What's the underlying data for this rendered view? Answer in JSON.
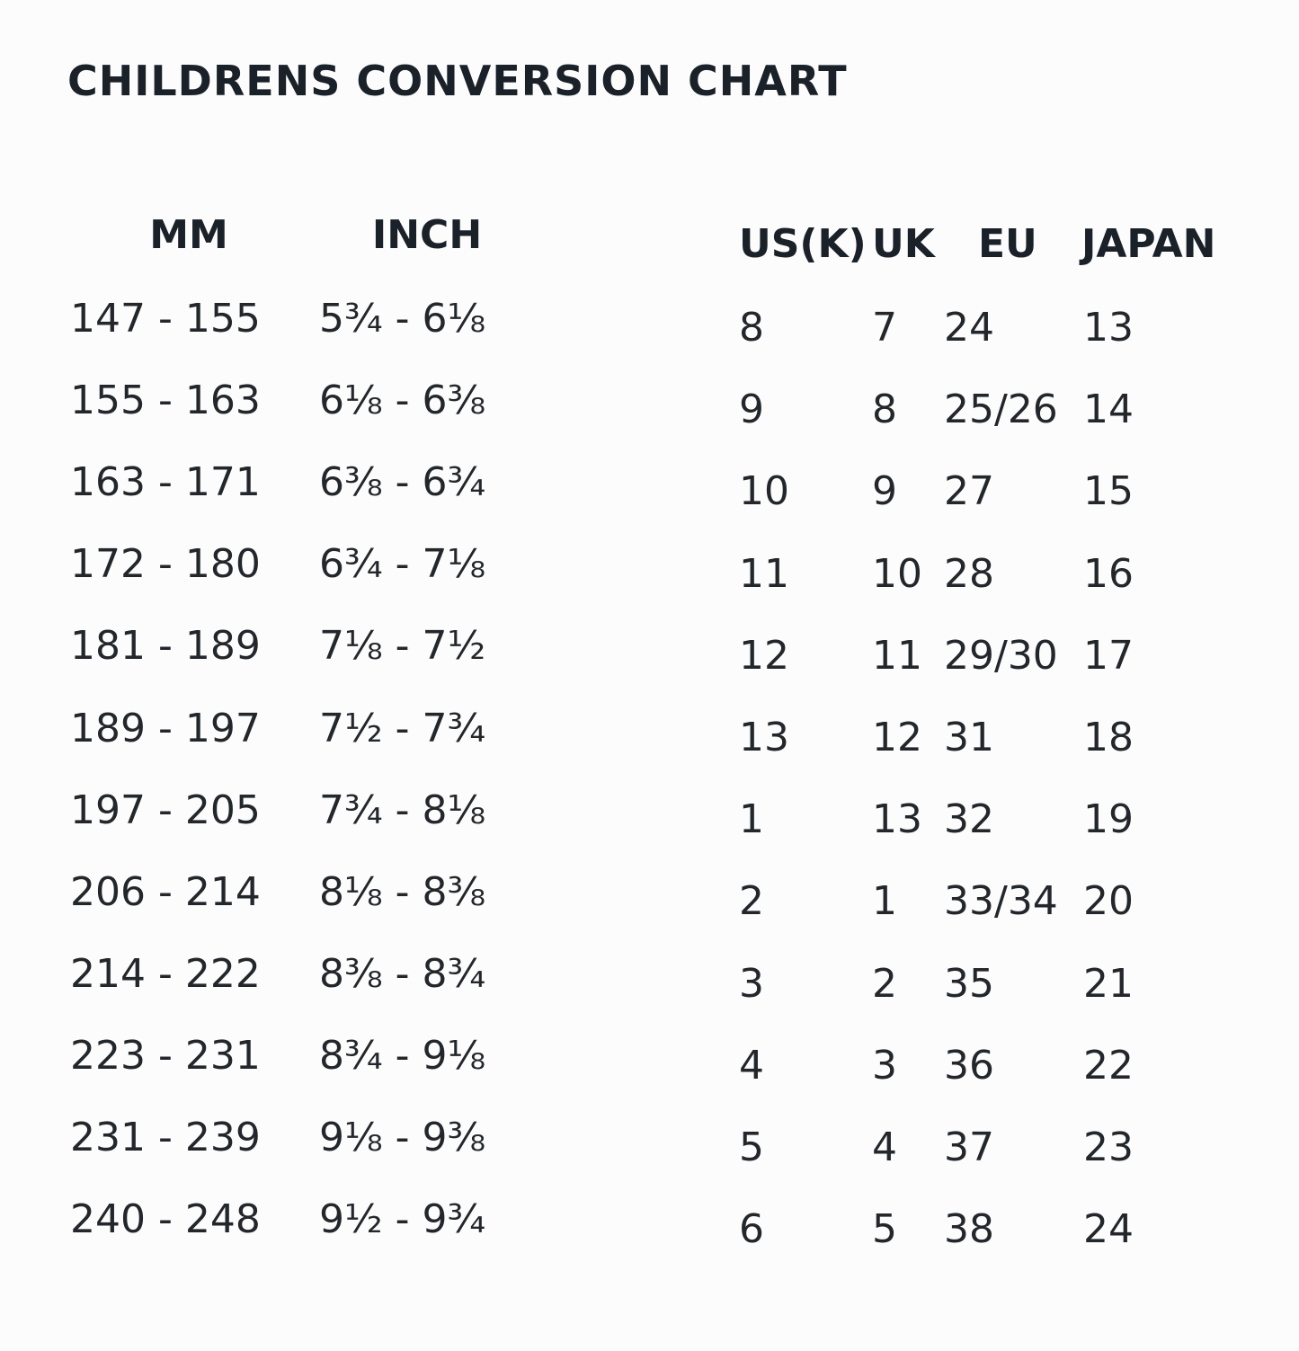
{
  "title": "CHILDRENS CONVERSION CHART",
  "left_table": {
    "headers": [
      "MM",
      "INCH"
    ],
    "rows": [
      [
        "147 - 155",
        "5¾ - 6⅛"
      ],
      [
        "155 - 163",
        "6⅛ - 6⅜"
      ],
      [
        "163 - 171",
        "6⅜ - 6¾"
      ],
      [
        "172 - 180",
        "6¾ - 7⅛"
      ],
      [
        "181 - 189",
        "7⅛ - 7½"
      ],
      [
        "189 - 197",
        "7½ - 7¾"
      ],
      [
        "197 - 205",
        "7¾ - 8⅛"
      ],
      [
        "206 - 214",
        "8⅛ - 8⅜"
      ],
      [
        "214 - 222",
        "8⅜ - 8¾"
      ],
      [
        "223 - 231",
        "8¾ - 9⅛"
      ],
      [
        "231 - 239",
        "9⅛ - 9⅜"
      ],
      [
        "240 - 248",
        "9½ - 9¾"
      ]
    ]
  },
  "right_table": {
    "headers": [
      "US(K)",
      "UK",
      "EU",
      "JAPAN"
    ],
    "rows": [
      [
        "8",
        "7",
        "24",
        "13"
      ],
      [
        "9",
        "8",
        "25/26",
        "14"
      ],
      [
        "10",
        "9",
        "27",
        "15"
      ],
      [
        "11",
        "10",
        "28",
        "16"
      ],
      [
        "12",
        "11",
        "29/30",
        "17"
      ],
      [
        "13",
        "12",
        "31",
        "18"
      ],
      [
        "1",
        "13",
        "32",
        "19"
      ],
      [
        "2",
        "1",
        "33/34",
        "20"
      ],
      [
        "3",
        "2",
        "35",
        "21"
      ],
      [
        "4",
        "3",
        "36",
        "22"
      ],
      [
        "5",
        "4",
        "37",
        "23"
      ],
      [
        "6",
        "5",
        "38",
        "24"
      ]
    ]
  }
}
